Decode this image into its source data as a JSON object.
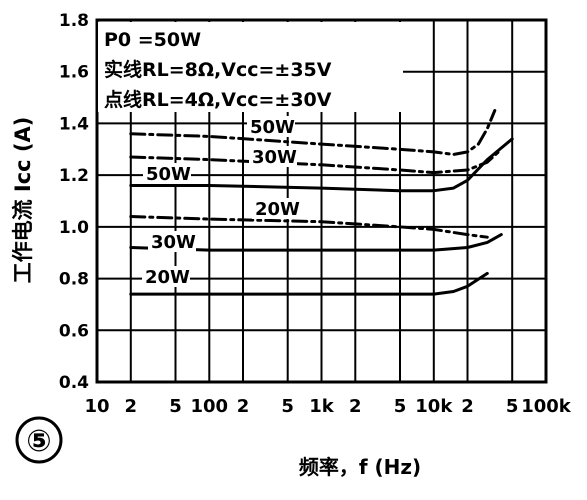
{
  "figure_number": "⑤",
  "chart_data": {
    "type": "line",
    "title": "",
    "xlabel": "频率，f (Hz)",
    "ylabel": "工作电流 Icc (A)",
    "x_scale": "log",
    "xlim": [
      10,
      100000
    ],
    "ylim": [
      0.4,
      1.8
    ],
    "x_ticks": [
      "10",
      "2",
      "5",
      "100",
      "2",
      "5",
      "1k",
      "2",
      "5",
      "10k",
      "2",
      "5",
      "100k"
    ],
    "y_ticks": [
      "0.4",
      "0.6",
      "0.8",
      "1.0",
      "1.2",
      "1.4",
      "1.6",
      "1.8"
    ],
    "grid": true,
    "legend": {
      "position": "top-left",
      "lines": [
        "P0 =50W",
        "实线RL=8Ω,Vcc=±35V",
        "点线RL=4Ω,Vcc=±30V"
      ]
    },
    "series": [
      {
        "label": "50W",
        "style": "dotted",
        "x": [
          20,
          100,
          1000,
          5000,
          10000,
          15000,
          20000,
          25000,
          30000,
          35000
        ],
        "y": [
          1.36,
          1.35,
          1.32,
          1.3,
          1.29,
          1.28,
          1.29,
          1.32,
          1.38,
          1.45
        ]
      },
      {
        "label": "30W",
        "style": "dotted",
        "x": [
          20,
          100,
          1000,
          5000,
          10000,
          20000,
          30000,
          40000
        ],
        "y": [
          1.27,
          1.26,
          1.24,
          1.22,
          1.21,
          1.22,
          1.25,
          1.3
        ]
      },
      {
        "label": "50W",
        "style": "solid",
        "x": [
          20,
          100,
          1000,
          5000,
          10000,
          15000,
          20000,
          30000,
          50000
        ],
        "y": [
          1.16,
          1.16,
          1.15,
          1.14,
          1.14,
          1.15,
          1.18,
          1.26,
          1.34
        ]
      },
      {
        "label": "20W",
        "style": "dotted",
        "x": [
          20,
          100,
          1000,
          5000,
          10000,
          20000,
          30000
        ],
        "y": [
          1.04,
          1.03,
          1.02,
          1.0,
          0.99,
          0.97,
          0.96
        ]
      },
      {
        "label": "30W",
        "style": "solid",
        "x": [
          20,
          100,
          1000,
          5000,
          10000,
          20000,
          30000,
          40000
        ],
        "y": [
          0.92,
          0.91,
          0.91,
          0.91,
          0.91,
          0.92,
          0.94,
          0.97
        ]
      },
      {
        "label": "20W",
        "style": "solid",
        "x": [
          20,
          100,
          1000,
          5000,
          10000,
          15000,
          20000,
          30000
        ],
        "y": [
          0.74,
          0.74,
          0.74,
          0.74,
          0.74,
          0.75,
          0.77,
          0.82
        ]
      }
    ]
  }
}
